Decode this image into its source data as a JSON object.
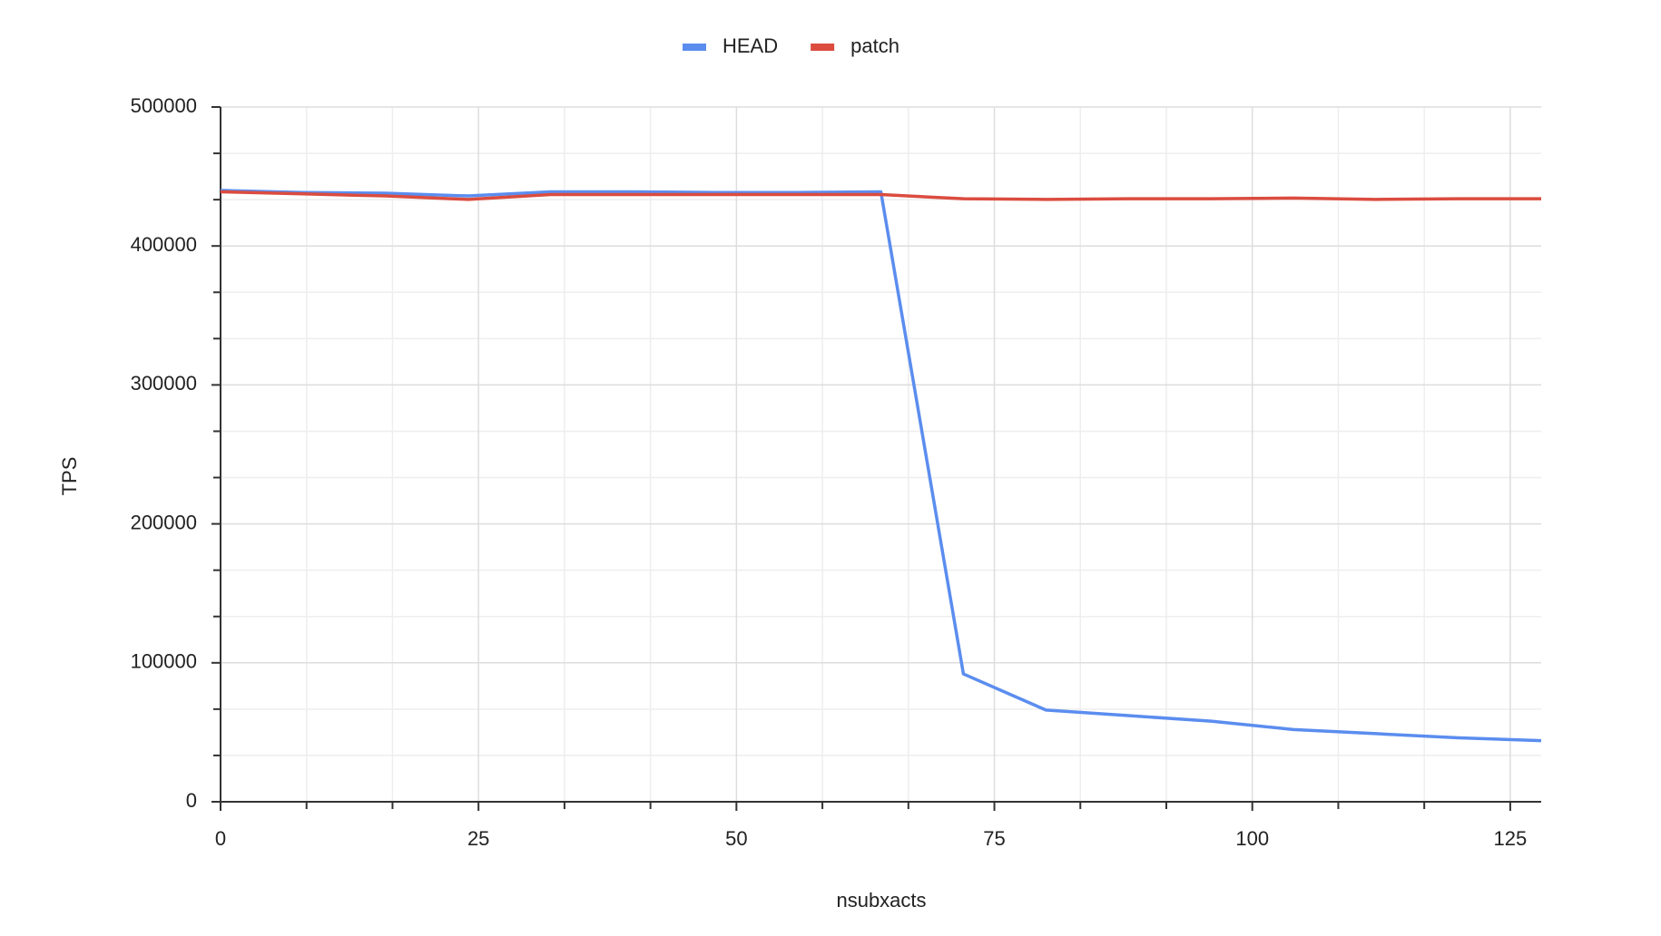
{
  "chart_data": {
    "type": "line",
    "x_label": "nsubxacts",
    "y_label": "TPS",
    "x": [
      0,
      8,
      16,
      24,
      32,
      40,
      48,
      56,
      64,
      72,
      80,
      88,
      96,
      104,
      112,
      120,
      128
    ],
    "series": [
      {
        "name": "HEAD",
        "color": "#5b8def",
        "values": [
          440000,
          438500,
          438000,
          436000,
          439000,
          439000,
          438500,
          438500,
          439000,
          92000,
          66000,
          62000,
          58000,
          52000,
          49000,
          46000,
          44000
        ]
      },
      {
        "name": "patch",
        "color": "#db4c3f",
        "values": [
          439000,
          437500,
          436000,
          433500,
          437000,
          437000,
          437000,
          437000,
          437000,
          434000,
          433500,
          434000,
          434000,
          434500,
          433500,
          434000,
          434000
        ]
      }
    ],
    "xlim": [
      0,
      128
    ],
    "xticks": [
      0,
      25,
      50,
      75,
      100,
      125
    ],
    "ylim": [
      0,
      500000
    ],
    "yticks": [
      0,
      100000,
      200000,
      300000,
      400000,
      500000
    ],
    "grid": true,
    "legend": "top"
  }
}
